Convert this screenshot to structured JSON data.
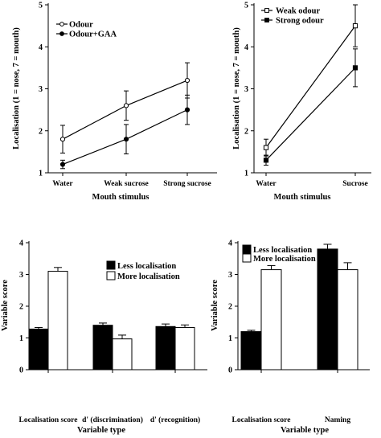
{
  "colors": {
    "ink": "#000000",
    "background": "#ffffff"
  },
  "chart_data": [
    {
      "type": "line",
      "title": "",
      "xlabel": "Mouth stimulus",
      "ylabel": "Localisation (1 = nose, 7 = mouth)",
      "categories": [
        "Water",
        "Weak sucrose",
        "Strong sucrose"
      ],
      "ylim": [
        1,
        5
      ],
      "yticks": [
        1,
        2,
        3,
        4,
        5
      ],
      "legend_position": "top-left",
      "series": [
        {
          "name": "Odour",
          "marker": "open-circle",
          "values": [
            1.8,
            2.6,
            3.2
          ],
          "errors": [
            0.33,
            0.35,
            0.42
          ]
        },
        {
          "name": "Odour+GAA",
          "marker": "filled-circle",
          "values": [
            1.2,
            1.8,
            2.5
          ],
          "errors": [
            0.1,
            0.35,
            0.35
          ]
        }
      ]
    },
    {
      "type": "line",
      "title": "",
      "xlabel": "Mouth stimulus",
      "ylabel": "Localisation (1 = nose, 7 = mouth)",
      "categories": [
        "Water",
        "Sucrose"
      ],
      "ylim": [
        1,
        5
      ],
      "yticks": [
        1,
        2,
        3,
        4,
        5
      ],
      "legend_position": "top-left",
      "series": [
        {
          "name": "Weak odour",
          "marker": "open-square",
          "values": [
            1.6,
            4.5
          ],
          "errors": [
            0.2,
            0.5
          ]
        },
        {
          "name": "Strong odour",
          "marker": "filled-square",
          "values": [
            1.3,
            3.5
          ],
          "errors": [
            0.12,
            0.45
          ]
        }
      ]
    },
    {
      "type": "bar",
      "title": "",
      "xlabel": "Variable type",
      "ylabel": "Variable score",
      "categories": [
        "Localisation score",
        "d' (discrimination)",
        "d' (recognition)"
      ],
      "ylim": [
        0,
        4
      ],
      "yticks": [
        0,
        1,
        2,
        3,
        4
      ],
      "legend_position": "top-right",
      "series": [
        {
          "name": "Less localisation",
          "fill": "#000000",
          "values": [
            1.28,
            1.4,
            1.36
          ],
          "errors": [
            0.05,
            0.07,
            0.08
          ]
        },
        {
          "name": "More localisation",
          "fill": "#ffffff",
          "values": [
            3.1,
            0.97,
            1.33
          ],
          "errors": [
            0.12,
            0.12,
            0.08
          ]
        }
      ]
    },
    {
      "type": "bar",
      "title": "",
      "xlabel": "Variable type",
      "ylabel": "Variable score",
      "categories": [
        "Localisation score",
        "Naming"
      ],
      "ylim": [
        0,
        4
      ],
      "yticks": [
        0,
        1,
        2,
        3,
        4
      ],
      "legend_position": "top-left",
      "series": [
        {
          "name": "Less localisation",
          "fill": "#000000",
          "values": [
            1.2,
            3.8
          ],
          "errors": [
            0.04,
            0.15
          ]
        },
        {
          "name": "More localisation",
          "fill": "#ffffff",
          "values": [
            3.15,
            3.15
          ],
          "errors": [
            0.13,
            0.22
          ]
        }
      ]
    }
  ]
}
